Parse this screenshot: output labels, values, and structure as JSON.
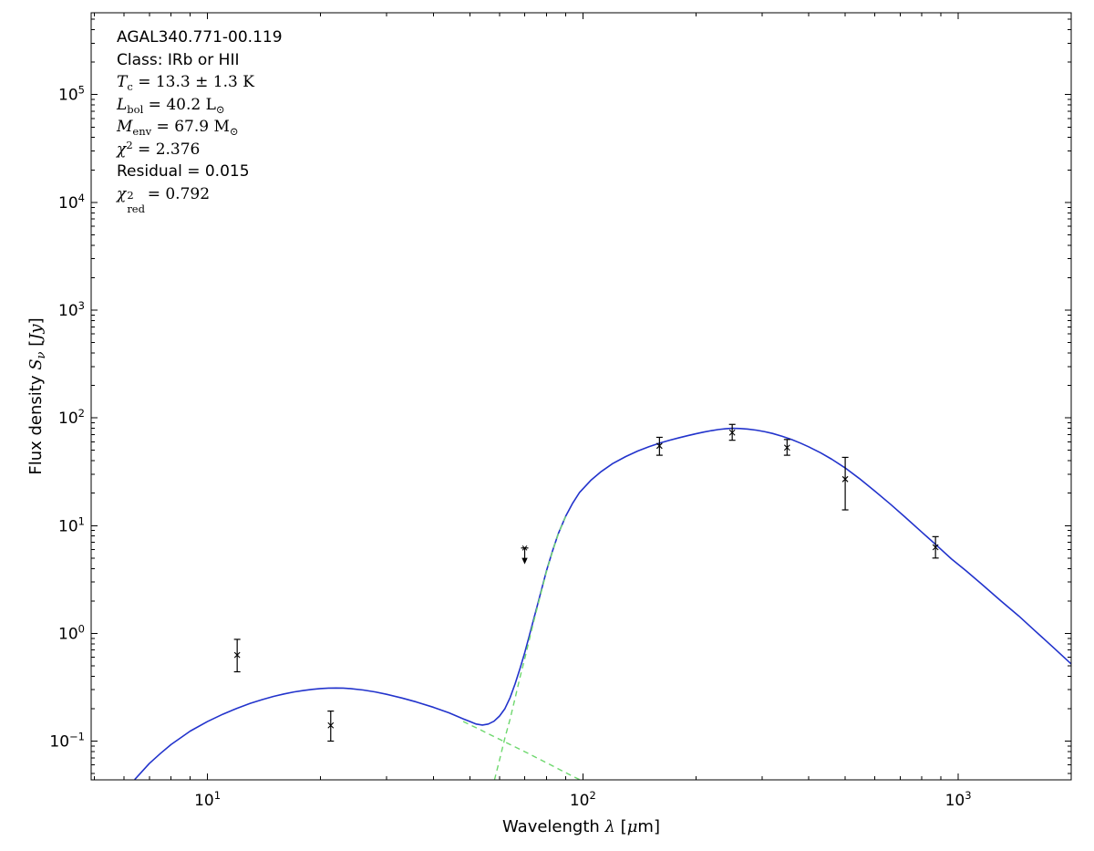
{
  "figure": {
    "background": "#ffffff",
    "frame_color": "#000000",
    "text_color": "#000000"
  },
  "annotation": {
    "lines": [
      {
        "parts": [
          {
            "text": "AGAL340.771-00.119",
            "style": "sans"
          }
        ]
      },
      {
        "parts": [
          {
            "text": "Class: IRb or HII",
            "style": "sans"
          }
        ]
      },
      {
        "parts": [
          {
            "text": "T",
            "style": "it"
          },
          {
            "text": "c",
            "style": "sub"
          },
          {
            "text": " = 13.3 ± 1.3 K",
            "style": "rm"
          }
        ]
      },
      {
        "parts": [
          {
            "text": "L",
            "style": "it"
          },
          {
            "text": "bol",
            "style": "sub"
          },
          {
            "text": " = 40.2 L",
            "style": "rm"
          },
          {
            "text": "⊙",
            "style": "sub"
          }
        ]
      },
      {
        "parts": [
          {
            "text": "M",
            "style": "it"
          },
          {
            "text": "env",
            "style": "sub"
          },
          {
            "text": " = 67.9 M",
            "style": "rm"
          },
          {
            "text": "⊙",
            "style": "sub"
          }
        ]
      },
      {
        "parts": [
          {
            "text": "χ",
            "style": "it"
          },
          {
            "text": "2",
            "style": "sup"
          },
          {
            "text": " = 2.376",
            "style": "rm"
          }
        ]
      },
      {
        "parts": [
          {
            "text": "Residual = 0.015",
            "style": "sans"
          }
        ]
      },
      {
        "parts": [
          {
            "text": "χ",
            "style": "it"
          },
          {
            "sup": "2",
            "sub": "red",
            "style": "supsub"
          },
          {
            "text": " = 0.792",
            "style": "rm"
          }
        ]
      }
    ]
  },
  "chart_data": {
    "type": "line",
    "title": "",
    "xlabel": "Wavelength λ [μm]",
    "ylabel": "Flux density Sν [Jy]",
    "xscale": "log",
    "yscale": "log",
    "xlim": [
      4.9,
      2000
    ],
    "ylim": [
      0.0437,
      575000
    ],
    "x_major_ticks": [
      10,
      100,
      1000
    ],
    "x_major_tick_exponents": [
      1,
      2,
      3
    ],
    "y_major_ticks": [
      0.1,
      1,
      10,
      100,
      1000,
      10000,
      100000
    ],
    "y_major_tick_exponents": [
      -1,
      0,
      1,
      2,
      3,
      4,
      5
    ],
    "grid": false,
    "legend": "none",
    "xlabel_parts": [
      {
        "text": "Wavelength ",
        "style": "sans"
      },
      {
        "text": "λ",
        "style": "it"
      },
      {
        "text": " [",
        "style": "sans"
      },
      {
        "text": "μ",
        "style": "it"
      },
      {
        "text": "m]",
        "style": "sans"
      }
    ],
    "ylabel_parts": [
      {
        "text": "Flux density ",
        "style": "sans"
      },
      {
        "text": "S",
        "style": "it"
      },
      {
        "text": "ν",
        "style": "subit"
      },
      {
        "text": " [",
        "style": "sans"
      },
      {
        "text": "Jy",
        "style": "it"
      },
      {
        "text": "]",
        "style": "sans"
      }
    ],
    "series": [
      {
        "name": "total-model-fit",
        "color": "#2233cc",
        "line": "solid",
        "width": 1.6,
        "points": [
          [
            6.4,
            0.044
          ],
          [
            7,
            0.062
          ],
          [
            7.5,
            0.077
          ],
          [
            8,
            0.093
          ],
          [
            9,
            0.124
          ],
          [
            10,
            0.152
          ],
          [
            11,
            0.178
          ],
          [
            12,
            0.202
          ],
          [
            13,
            0.224
          ],
          [
            14,
            0.243
          ],
          [
            15,
            0.26
          ],
          [
            16,
            0.274
          ],
          [
            17,
            0.286
          ],
          [
            18,
            0.295
          ],
          [
            19,
            0.302
          ],
          [
            20,
            0.307
          ],
          [
            21,
            0.31
          ],
          [
            22,
            0.311
          ],
          [
            23,
            0.31
          ],
          [
            24,
            0.307
          ],
          [
            26,
            0.298
          ],
          [
            28,
            0.286
          ],
          [
            30,
            0.272
          ],
          [
            33,
            0.251
          ],
          [
            36,
            0.231
          ],
          [
            40,
            0.206
          ],
          [
            44,
            0.183
          ],
          [
            48,
            0.161
          ],
          [
            50,
            0.152
          ],
          [
            52,
            0.144
          ],
          [
            54,
            0.141
          ],
          [
            56,
            0.144
          ],
          [
            58,
            0.153
          ],
          [
            60,
            0.171
          ],
          [
            62,
            0.2
          ],
          [
            64,
            0.253
          ],
          [
            66,
            0.34
          ],
          [
            68,
            0.47
          ],
          [
            70,
            0.66
          ],
          [
            72,
            0.95
          ],
          [
            74,
            1.36
          ],
          [
            76,
            1.93
          ],
          [
            78,
            2.72
          ],
          [
            80,
            3.8
          ],
          [
            83,
            5.8
          ],
          [
            86,
            8.4
          ],
          [
            90,
            12.2
          ],
          [
            94,
            16.2
          ],
          [
            98,
            20.3
          ],
          [
            105,
            26.3
          ],
          [
            112,
            31.8
          ],
          [
            120,
            37.6
          ],
          [
            130,
            43.7
          ],
          [
            140,
            49.2
          ],
          [
            150,
            54
          ],
          [
            160,
            58.2
          ],
          [
            170,
            61.9
          ],
          [
            180,
            65.2
          ],
          [
            190,
            68.3
          ],
          [
            200,
            71.2
          ],
          [
            210,
            73.8
          ],
          [
            220,
            76.1
          ],
          [
            230,
            78
          ],
          [
            240,
            79.3
          ],
          [
            250,
            80
          ],
          [
            262,
            79.7
          ],
          [
            275,
            78.7
          ],
          [
            290,
            76.9
          ],
          [
            305,
            74.5
          ],
          [
            320,
            71.7
          ],
          [
            340,
            67.4
          ],
          [
            360,
            62.9
          ],
          [
            380,
            58.3
          ],
          [
            400,
            53.8
          ],
          [
            430,
            47.4
          ],
          [
            460,
            41.4
          ],
          [
            500,
            34.3
          ],
          [
            545,
            27.4
          ],
          [
            600,
            20.9
          ],
          [
            660,
            15.8
          ],
          [
            720,
            12.1
          ],
          [
            800,
            8.7
          ],
          [
            870,
            6.7
          ],
          [
            960,
            4.9
          ],
          [
            1050,
            3.8
          ],
          [
            1150,
            2.9
          ],
          [
            1300,
            2.0
          ],
          [
            1450,
            1.45
          ],
          [
            1600,
            1.06
          ],
          [
            1800,
            0.73
          ],
          [
            2000,
            0.52
          ]
        ]
      },
      {
        "name": "warm-component",
        "color": "#6ed86e",
        "line": "dashed",
        "width": 1.4,
        "points": [
          [
            48,
            0.152
          ],
          [
            52,
            0.133
          ],
          [
            56,
            0.117
          ],
          [
            60,
            0.104
          ],
          [
            64,
            0.093
          ],
          [
            68,
            0.084
          ],
          [
            72,
            0.076
          ],
          [
            76,
            0.069
          ],
          [
            80,
            0.063
          ],
          [
            85,
            0.0565
          ],
          [
            90,
            0.051
          ],
          [
            95,
            0.0463
          ],
          [
            100,
            0.0425
          ],
          [
            103,
            0.0405
          ]
        ]
      },
      {
        "name": "cold-component",
        "color": "#6ed86e",
        "line": "dashed",
        "width": 1.4,
        "points": [
          [
            52,
            0.011
          ],
          [
            54,
            0.018
          ],
          [
            56,
            0.027
          ],
          [
            58,
            0.042
          ],
          [
            60,
            0.067
          ],
          [
            62,
            0.107
          ],
          [
            64,
            0.16
          ],
          [
            66,
            0.25
          ],
          [
            68,
            0.39
          ],
          [
            70,
            0.58
          ],
          [
            72,
            0.87
          ],
          [
            74,
            1.29
          ],
          [
            76,
            1.86
          ],
          [
            78,
            2.65
          ],
          [
            80,
            3.74
          ],
          [
            83,
            5.74
          ],
          [
            86,
            8.34
          ],
          [
            90,
            12.15
          ]
        ]
      }
    ],
    "data_points": [
      {
        "wavelength": 12,
        "flux": 0.63,
        "flux_lo": 0.44,
        "flux_hi": 0.88
      },
      {
        "wavelength": 21.3,
        "flux": 0.14,
        "flux_lo": 0.1,
        "flux_hi": 0.19
      },
      {
        "wavelength": 160,
        "flux": 55,
        "flux_lo": 45,
        "flux_hi": 66
      },
      {
        "wavelength": 250,
        "flux": 73,
        "flux_lo": 62,
        "flux_hi": 87
      },
      {
        "wavelength": 350,
        "flux": 53,
        "flux_lo": 45,
        "flux_hi": 63
      },
      {
        "wavelength": 500,
        "flux": 27,
        "flux_lo": 14,
        "flux_hi": 43
      },
      {
        "wavelength": 870,
        "flux": 6.3,
        "flux_lo": 5.0,
        "flux_hi": 7.9
      }
    ],
    "upper_limits": [
      {
        "wavelength": 70,
        "flux": 6.2,
        "arrow_to": 4.55
      }
    ],
    "marker": {
      "type": "x",
      "color": "#000000"
    }
  }
}
